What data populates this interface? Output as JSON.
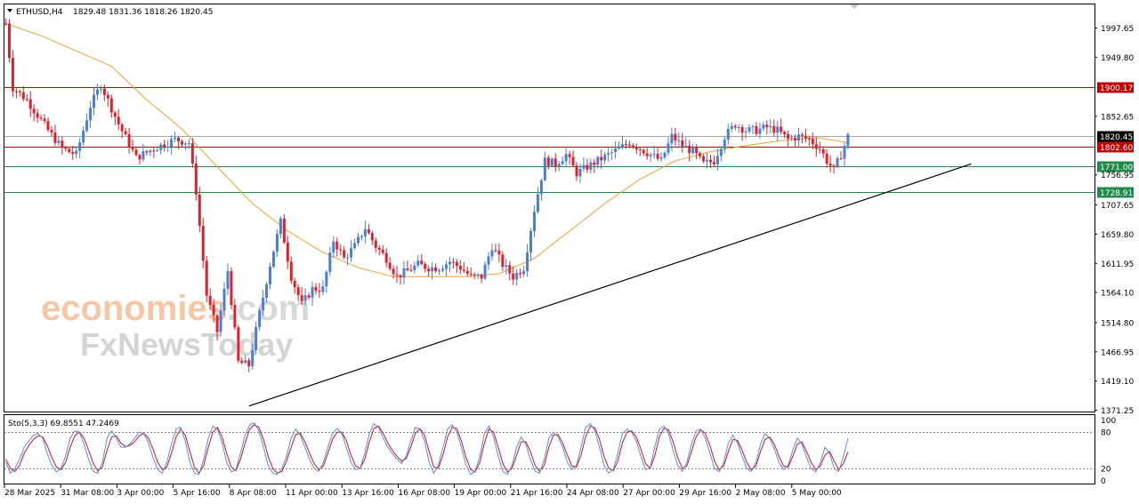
{
  "header": {
    "symbol": "ETHUSD,H4",
    "ohlc": "1829.48 1831.36 1818.26 1820.45"
  },
  "watermark": {
    "brand1_main": "economies",
    "brand1_suffix": ".com",
    "brand2": "FxNewsToday"
  },
  "indicator": {
    "label": "Sto(5,3,3) 69.8551 47.2469",
    "levels": [
      80,
      20
    ],
    "axis_labels": [
      "100",
      "80",
      "20",
      "0"
    ]
  },
  "colors": {
    "bull": "#4a7fd4",
    "bear": "#e0202a",
    "ma": "#f5a033",
    "resistance": "#c00000",
    "support": "#1f8a4c",
    "trendline": "#000000",
    "stoch_main": "#5a8fd8",
    "stoch_signal": "#d01020",
    "current_price_line": "#a0a0a0"
  },
  "chart_data": [
    {
      "type": "candlestick",
      "symbol": "ETHUSD",
      "timeframe": "H4",
      "ylim": [
        1371.25,
        2045
      ],
      "y_ticks": [
        "1997.65",
        "1949.80",
        "1852.65",
        "1756.95",
        "1707.65",
        "1659.80",
        "1611.95",
        "1564.10",
        "1514.80",
        "1466.95",
        "1419.10",
        "1371.25"
      ],
      "x_ticks": [
        "28 Mar 2025",
        "31 Mar 08:00",
        "3 Apr 00:00",
        "5 Apr 16:00",
        "8 Apr 08:00",
        "11 Apr 00:00",
        "13 Apr 16:00",
        "16 Apr 08:00",
        "19 Apr 00:00",
        "21 Apr 16:00",
        "24 Apr 08:00",
        "27 Apr 00:00",
        "29 Apr 16:00",
        "2 May 08:00",
        "5 May 00:00"
      ],
      "price_path": [
        [
          0,
          2005
        ],
        [
          2,
          1900
        ],
        [
          6,
          1880
        ],
        [
          12,
          1830
        ],
        [
          16,
          1800
        ],
        [
          20,
          1790
        ],
        [
          24,
          1870
        ],
        [
          27,
          1905
        ],
        [
          32,
          1840
        ],
        [
          37,
          1785
        ],
        [
          42,
          1800
        ],
        [
          48,
          1815
        ],
        [
          52,
          1810
        ],
        [
          54,
          1730
        ],
        [
          57,
          1560
        ],
        [
          60,
          1500
        ],
        [
          63,
          1600
        ],
        [
          66,
          1450
        ],
        [
          69,
          1445
        ],
        [
          72,
          1530
        ],
        [
          75,
          1610
        ],
        [
          78,
          1680
        ],
        [
          81,
          1590
        ],
        [
          84,
          1545
        ],
        [
          87,
          1570
        ],
        [
          90,
          1570
        ],
        [
          93,
          1650
        ],
        [
          96,
          1620
        ],
        [
          99,
          1640
        ],
        [
          102,
          1670
        ],
        [
          105,
          1640
        ],
        [
          108,
          1620
        ],
        [
          111,
          1590
        ],
        [
          114,
          1600
        ],
        [
          117,
          1610
        ],
        [
          120,
          1605
        ],
        [
          123,
          1605
        ],
        [
          126,
          1615
        ],
        [
          129,
          1605
        ],
        [
          132,
          1590
        ],
        [
          135,
          1590
        ],
        [
          138,
          1640
        ],
        [
          141,
          1610
        ],
        [
          144,
          1590
        ],
        [
          147,
          1605
        ],
        [
          150,
          1700
        ],
        [
          153,
          1780
        ],
        [
          156,
          1775
        ],
        [
          159,
          1790
        ],
        [
          162,
          1760
        ],
        [
          165,
          1770
        ],
        [
          168,
          1780
        ],
        [
          171,
          1790
        ],
        [
          174,
          1800
        ],
        [
          177,
          1810
        ],
        [
          180,
          1800
        ],
        [
          183,
          1790
        ],
        [
          186,
          1780
        ],
        [
          189,
          1820
        ],
        [
          192,
          1805
        ],
        [
          195,
          1795
        ],
        [
          198,
          1775
        ],
        [
          201,
          1780
        ],
        [
          204,
          1820
        ],
        [
          207,
          1840
        ],
        [
          210,
          1830
        ],
        [
          213,
          1830
        ],
        [
          216,
          1835
        ],
        [
          219,
          1830
        ],
        [
          222,
          1815
        ],
        [
          225,
          1820
        ],
        [
          228,
          1815
        ],
        [
          231,
          1800
        ],
        [
          233,
          1780
        ],
        [
          235,
          1765
        ],
        [
          237,
          1790
        ],
        [
          239,
          1820
        ]
      ],
      "ma_path": [
        [
          0,
          2005
        ],
        [
          10,
          1985
        ],
        [
          20,
          1960
        ],
        [
          30,
          1935
        ],
        [
          40,
          1880
        ],
        [
          50,
          1832
        ],
        [
          60,
          1770
        ],
        [
          70,
          1710
        ],
        [
          80,
          1665
        ],
        [
          90,
          1630
        ],
        [
          100,
          1605
        ],
        [
          110,
          1590
        ],
        [
          120,
          1590
        ],
        [
          130,
          1590
        ],
        [
          140,
          1595
        ],
        [
          150,
          1620
        ],
        [
          160,
          1665
        ],
        [
          170,
          1710
        ],
        [
          180,
          1750
        ],
        [
          190,
          1780
        ],
        [
          200,
          1795
        ],
        [
          210,
          1805
        ],
        [
          220,
          1813
        ],
        [
          230,
          1818
        ],
        [
          239,
          1810
        ]
      ],
      "horizontal_levels": [
        {
          "label": "1900.17",
          "value": 1900.17,
          "color": "#c00000"
        },
        {
          "label": "1802.60",
          "value": 1802.6,
          "color": "#c00000"
        },
        {
          "label": "1771.00",
          "value": 1771.0,
          "color": "#1f8a4c"
        },
        {
          "label": "1728.91",
          "value": 1728.91,
          "color": "#1f8a4c"
        }
      ],
      "current_price": {
        "label": "1820.45",
        "value": 1820.45
      },
      "trendline": {
        "from_index": 69,
        "from_price": 1378,
        "to_index": 274,
        "to_price": 1775
      }
    },
    {
      "type": "line",
      "name": "Sto(5,3,3)",
      "ylim": [
        0,
        100
      ],
      "levels": [
        80,
        20
      ],
      "series": [
        {
          "name": "main",
          "values": [
            30,
            12,
            20,
            35,
            55,
            65,
            75,
            78,
            70,
            45,
            25,
            14,
            20,
            40,
            70,
            82,
            80,
            60,
            35,
            15,
            12,
            30,
            70,
            82,
            70,
            55,
            55,
            60,
            70,
            80,
            78,
            62,
            38,
            18,
            12,
            30,
            60,
            85,
            88,
            65,
            30,
            12,
            10,
            35,
            70,
            90,
            85,
            62,
            30,
            14,
            18,
            45,
            75,
            92,
            95,
            82,
            55,
            25,
            12,
            10,
            20,
            40,
            70,
            85,
            75,
            55,
            35,
            20,
            15,
            30,
            55,
            78,
            86,
            78,
            55,
            30,
            18,
            20,
            45,
            78,
            94,
            88,
            70,
            55,
            45,
            35,
            28,
            40,
            65,
            88,
            85,
            65,
            30,
            12,
            25,
            55,
            85,
            92,
            80,
            55,
            25,
            10,
            15,
            40,
            78,
            90,
            72,
            40,
            15,
            10,
            25,
            55,
            72,
            60,
            35,
            15,
            12,
            35,
            70,
            80,
            72,
            55,
            30,
            18,
            25,
            55,
            88,
            94,
            82,
            55,
            25,
            12,
            18,
            45,
            78,
            85,
            80,
            65,
            40,
            18,
            20,
            55,
            85,
            90,
            78,
            50,
            25,
            15,
            30,
            60,
            82,
            85,
            70,
            45,
            20,
            14,
            30,
            62,
            75,
            62,
            40,
            20,
            15,
            30,
            60,
            78,
            70,
            52,
            30,
            18,
            25,
            50,
            70,
            60,
            38,
            20,
            14,
            30,
            55,
            45,
            20,
            15,
            40,
            69.9
          ]
        },
        {
          "name": "signal",
          "values": [
            35,
            20,
            15,
            25,
            45,
            58,
            68,
            74,
            72,
            58,
            38,
            22,
            18,
            30,
            55,
            74,
            80,
            70,
            50,
            28,
            16,
            22,
            50,
            72,
            74,
            62,
            56,
            58,
            64,
            74,
            78,
            70,
            52,
            30,
            18,
            22,
            45,
            72,
            85,
            75,
            48,
            22,
            12,
            25,
            55,
            80,
            88,
            72,
            45,
            22,
            16,
            35,
            62,
            85,
            92,
            88,
            68,
            40,
            20,
            12,
            15,
            32,
            55,
            76,
            78,
            64,
            45,
            28,
            18,
            24,
            45,
            68,
            80,
            80,
            66,
            42,
            24,
            20,
            35,
            64,
            86,
            90,
            78,
            62,
            50,
            40,
            32,
            36,
            55,
            78,
            86,
            75,
            48,
            22,
            20,
            42,
            72,
            88,
            86,
            65,
            38,
            18,
            14,
            30,
            62,
            85,
            80,
            55,
            28,
            14,
            20,
            42,
            64,
            64,
            48,
            25,
            15,
            25,
            55,
            75,
            76,
            62,
            42,
            24,
            22,
            42,
            72,
            90,
            87,
            68,
            40,
            20,
            16,
            32,
            62,
            80,
            82,
            72,
            52,
            28,
            20,
            40,
            72,
            86,
            84,
            64,
            38,
            20,
            24,
            48,
            72,
            84,
            78,
            58,
            32,
            18,
            24,
            48,
            68,
            66,
            50,
            30,
            18,
            24,
            48,
            68,
            72,
            60,
            40,
            24,
            22,
            40,
            60,
            64,
            48,
            30,
            18,
            24,
            42,
            48,
            32,
            18,
            28,
            47.2
          ]
        }
      ]
    }
  ]
}
